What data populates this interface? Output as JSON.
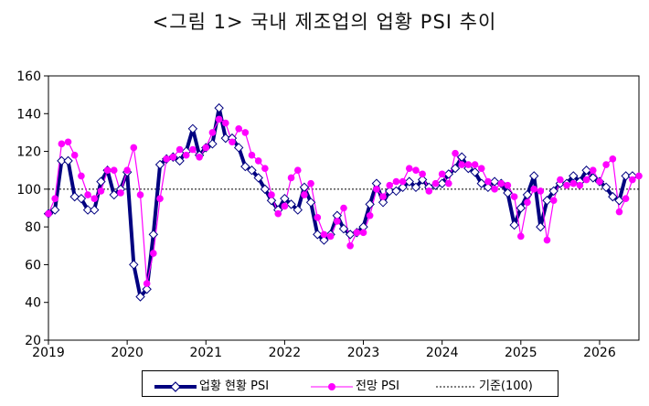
{
  "title": "<그림 1> 국내 제조업의 업황 PSI 추이",
  "colors": {
    "current": "#000080",
    "outlook": "#ff00ff",
    "baseline": "#000000"
  },
  "chart_data": {
    "type": "line",
    "title": "<그림 1> 국내 제조업의 업황 PSI 추이",
    "xlabel": "",
    "ylabel": "",
    "x_range": [
      2019,
      2026.5
    ],
    "ylim": [
      20,
      160
    ],
    "y_ticks": [
      20,
      40,
      60,
      80,
      100,
      120,
      140,
      160
    ],
    "x_tick_labels": [
      "2019",
      "2020",
      "2021",
      "2022",
      "2023",
      "2024",
      "2025",
      "2026"
    ],
    "grid": false,
    "legend_position": "bottom",
    "baseline": {
      "name": "기준(100)",
      "value": 100
    },
    "series": [
      {
        "name": "업황 현황 PSI",
        "marker": "diamond",
        "points": [
          [
            2019.0,
            87
          ],
          [
            2019.083,
            89
          ],
          [
            2019.167,
            115
          ],
          [
            2019.25,
            115
          ],
          [
            2019.333,
            96
          ],
          [
            2019.417,
            95
          ],
          [
            2019.5,
            89
          ],
          [
            2019.583,
            89
          ],
          [
            2019.667,
            104
          ],
          [
            2019.75,
            110
          ],
          [
            2019.833,
            97
          ],
          [
            2019.917,
            100
          ],
          [
            2020.0,
            109
          ],
          [
            2020.083,
            60
          ],
          [
            2020.167,
            43
          ],
          [
            2020.25,
            47
          ],
          [
            2020.333,
            76
          ],
          [
            2020.417,
            113
          ],
          [
            2020.5,
            116
          ],
          [
            2020.583,
            117
          ],
          [
            2020.667,
            115
          ],
          [
            2020.75,
            120
          ],
          [
            2020.833,
            132
          ],
          [
            2020.917,
            118
          ],
          [
            2021.0,
            122
          ],
          [
            2021.083,
            124
          ],
          [
            2021.167,
            143
          ],
          [
            2021.25,
            127
          ],
          [
            2021.333,
            127
          ],
          [
            2021.417,
            122
          ],
          [
            2021.5,
            112
          ],
          [
            2021.583,
            110
          ],
          [
            2021.667,
            106
          ],
          [
            2021.75,
            100
          ],
          [
            2021.833,
            94
          ],
          [
            2021.917,
            89
          ],
          [
            2022.0,
            95
          ],
          [
            2022.083,
            92
          ],
          [
            2022.167,
            89
          ],
          [
            2022.25,
            101
          ],
          [
            2022.333,
            93
          ],
          [
            2022.417,
            76
          ],
          [
            2022.5,
            73
          ],
          [
            2022.583,
            76
          ],
          [
            2022.667,
            86
          ],
          [
            2022.75,
            79
          ],
          [
            2022.833,
            76
          ],
          [
            2022.917,
            77
          ],
          [
            2023.0,
            80
          ],
          [
            2023.083,
            92
          ],
          [
            2023.167,
            103
          ],
          [
            2023.25,
            93
          ],
          [
            2023.333,
            99
          ],
          [
            2023.417,
            99
          ],
          [
            2023.5,
            101
          ],
          [
            2023.583,
            104
          ],
          [
            2023.667,
            101
          ],
          [
            2023.75,
            105
          ],
          [
            2023.833,
            101
          ],
          [
            2023.917,
            102
          ],
          [
            2024.0,
            103
          ],
          [
            2024.083,
            108
          ],
          [
            2024.167,
            111
          ],
          [
            2024.25,
            117
          ],
          [
            2024.333,
            111
          ],
          [
            2024.417,
            109
          ],
          [
            2024.5,
            103
          ],
          [
            2024.583,
            101
          ],
          [
            2024.667,
            104
          ],
          [
            2024.75,
            103
          ],
          [
            2024.833,
            98
          ],
          [
            2024.917,
            81
          ],
          [
            2025.0,
            90
          ],
          [
            2025.083,
            97
          ],
          [
            2025.167,
            107
          ],
          [
            2025.25,
            80
          ],
          [
            2025.333,
            94
          ],
          [
            2025.417,
            99
          ],
          [
            2025.5,
            103
          ],
          [
            2025.583,
            103
          ],
          [
            2025.667,
            107
          ],
          [
            2025.75,
            104
          ],
          [
            2025.833,
            110
          ],
          [
            2025.917,
            106
          ],
          [
            2026.0,
            104
          ],
          [
            2026.083,
            101
          ],
          [
            2026.167,
            96
          ],
          [
            2026.25,
            94
          ],
          [
            2026.333,
            107
          ],
          [
            2026.417,
            107
          ]
        ]
      },
      {
        "name": "전망 PSI",
        "marker": "circle",
        "points": [
          [
            2019.0,
            87
          ],
          [
            2019.083,
            95
          ],
          [
            2019.167,
            124
          ],
          [
            2019.25,
            125
          ],
          [
            2019.333,
            118
          ],
          [
            2019.417,
            107
          ],
          [
            2019.5,
            97
          ],
          [
            2019.583,
            95
          ],
          [
            2019.667,
            99
          ],
          [
            2019.75,
            110
          ],
          [
            2019.833,
            110
          ],
          [
            2019.917,
            98
          ],
          [
            2020.0,
            110
          ],
          [
            2020.083,
            122
          ],
          [
            2020.167,
            97
          ],
          [
            2020.25,
            50
          ],
          [
            2020.333,
            66
          ],
          [
            2020.417,
            95
          ],
          [
            2020.5,
            116
          ],
          [
            2020.583,
            117
          ],
          [
            2020.667,
            121
          ],
          [
            2020.75,
            118
          ],
          [
            2020.833,
            121
          ],
          [
            2020.917,
            117
          ],
          [
            2021.0,
            122
          ],
          [
            2021.083,
            130
          ],
          [
            2021.167,
            137
          ],
          [
            2021.25,
            135
          ],
          [
            2021.333,
            125
          ],
          [
            2021.417,
            132
          ],
          [
            2021.5,
            130
          ],
          [
            2021.583,
            118
          ],
          [
            2021.667,
            115
          ],
          [
            2021.75,
            111
          ],
          [
            2021.833,
            97
          ],
          [
            2021.917,
            87
          ],
          [
            2022.0,
            91
          ],
          [
            2022.083,
            106
          ],
          [
            2022.167,
            110
          ],
          [
            2022.25,
            97
          ],
          [
            2022.333,
            103
          ],
          [
            2022.417,
            85
          ],
          [
            2022.5,
            76
          ],
          [
            2022.583,
            75
          ],
          [
            2022.667,
            83
          ],
          [
            2022.75,
            90
          ],
          [
            2022.833,
            70
          ],
          [
            2022.917,
            77
          ],
          [
            2023.0,
            77
          ],
          [
            2023.083,
            86
          ],
          [
            2023.167,
            100
          ],
          [
            2023.25,
            96
          ],
          [
            2023.333,
            102
          ],
          [
            2023.417,
            104
          ],
          [
            2023.5,
            104
          ],
          [
            2023.583,
            111
          ],
          [
            2023.667,
            110
          ],
          [
            2023.75,
            108
          ],
          [
            2023.833,
            99
          ],
          [
            2023.917,
            103
          ],
          [
            2024.0,
            108
          ],
          [
            2024.083,
            103
          ],
          [
            2024.167,
            119
          ],
          [
            2024.25,
            113
          ],
          [
            2024.333,
            113
          ],
          [
            2024.417,
            113
          ],
          [
            2024.5,
            111
          ],
          [
            2024.583,
            104
          ],
          [
            2024.667,
            100
          ],
          [
            2024.75,
            103
          ],
          [
            2024.833,
            102
          ],
          [
            2024.917,
            96
          ],
          [
            2025.0,
            75
          ],
          [
            2025.083,
            93
          ],
          [
            2025.167,
            100
          ],
          [
            2025.25,
            99
          ],
          [
            2025.333,
            73
          ],
          [
            2025.417,
            94
          ],
          [
            2025.5,
            105
          ],
          [
            2025.583,
            102
          ],
          [
            2025.667,
            103
          ],
          [
            2025.75,
            102
          ],
          [
            2025.833,
            105
          ],
          [
            2025.917,
            110
          ],
          [
            2026.0,
            104
          ],
          [
            2026.083,
            113
          ],
          [
            2026.167,
            116
          ],
          [
            2026.25,
            88
          ],
          [
            2026.333,
            95
          ],
          [
            2026.417,
            105
          ],
          [
            2026.5,
            107
          ]
        ]
      }
    ]
  }
}
